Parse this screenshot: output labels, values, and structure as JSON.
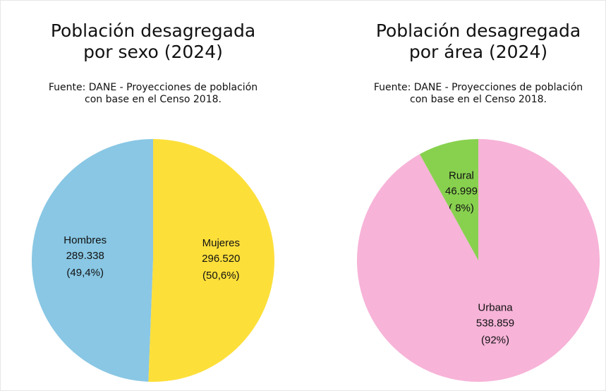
{
  "chart_data": [
    {
      "type": "pie",
      "title": [
        "Población desagregada",
        "por sexo (2024)"
      ],
      "subtitle": [
        "Fuente: DANE - Proyecciones de población",
        "con base en el Censo 2018."
      ],
      "categories": [
        "Hombres",
        "Mujeres"
      ],
      "values": [
        289338,
        296520
      ],
      "value_labels": [
        "289.338",
        "296.520"
      ],
      "percentages": [
        49.4,
        50.6
      ],
      "percentage_labels": [
        "(49,4%)",
        "(50,6%)"
      ],
      "colors": [
        "#89c7e4",
        "#fddf3a"
      ]
    },
    {
      "type": "pie",
      "title": [
        "Población desagregada",
        "por área (2024)"
      ],
      "subtitle": [
        "Fuente: DANE - Proyecciones de población",
        "con base en el Censo 2018."
      ],
      "categories": [
        "Rural",
        "Urbana"
      ],
      "values": [
        46999,
        538859
      ],
      "value_labels": [
        "46.999",
        "538.859"
      ],
      "percentages": [
        8,
        92
      ],
      "percentage_labels": [
        "( 8%)",
        "(92%)"
      ],
      "colors": [
        "#88d14f",
        "#f7b3d8"
      ]
    }
  ]
}
